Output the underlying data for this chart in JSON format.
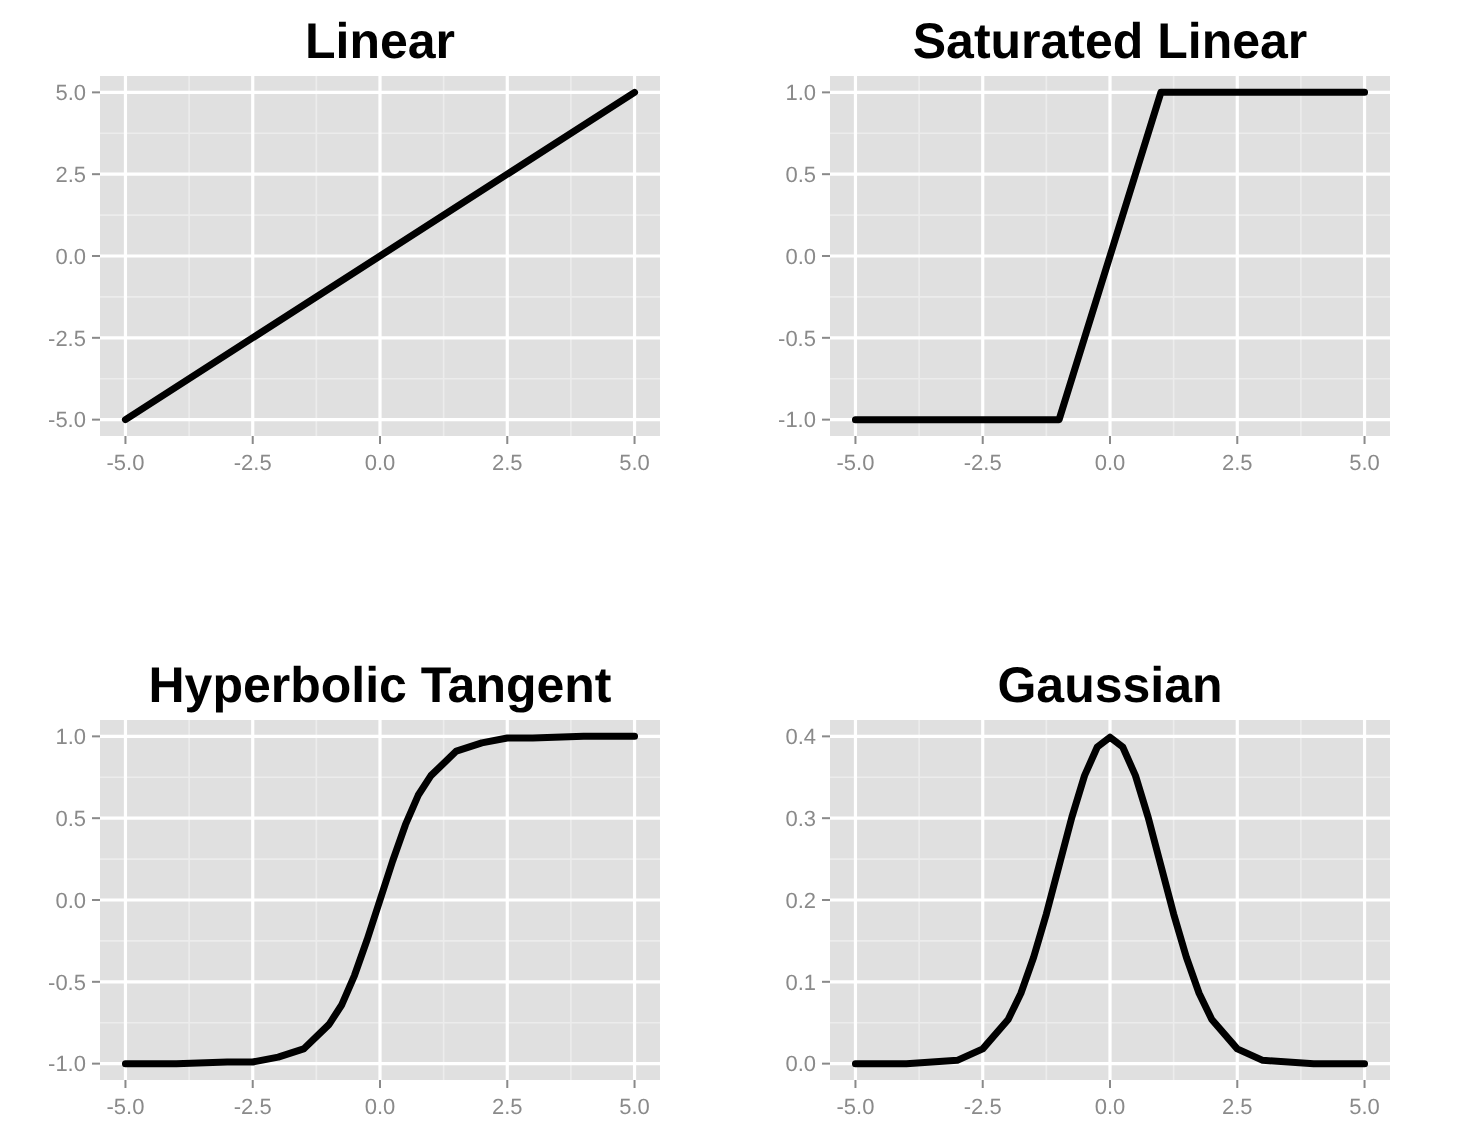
{
  "chart_data": [
    {
      "type": "line",
      "title": "Linear",
      "x": [
        -5,
        5
      ],
      "series": [
        {
          "color": "#000000",
          "values": [
            -5,
            5
          ]
        }
      ],
      "xlim": [
        -5.5,
        5.5
      ],
      "xticks": [
        {
          "value": -5,
          "label": "-5.0"
        },
        {
          "value": -2.5,
          "label": "-2.5"
        },
        {
          "value": 0,
          "label": "0.0"
        },
        {
          "value": 2.5,
          "label": "2.5"
        },
        {
          "value": 5,
          "label": "5.0"
        }
      ],
      "ylim": [
        -5.5,
        5.5
      ],
      "yticks": [
        {
          "value": -5,
          "label": "-5.0"
        },
        {
          "value": -2.5,
          "label": "-2.5"
        },
        {
          "value": 0,
          "label": "0.0"
        },
        {
          "value": 2.5,
          "label": "2.5"
        },
        {
          "value": 5,
          "label": "5.0"
        }
      ],
      "grid": true
    },
    {
      "type": "line",
      "title": "Saturated Linear",
      "x": [
        -5,
        -1,
        1,
        5
      ],
      "series": [
        {
          "color": "#000000",
          "values": [
            -1,
            -1,
            1,
            1
          ]
        }
      ],
      "xlim": [
        -5.5,
        5.5
      ],
      "xticks": [
        {
          "value": -5,
          "label": "-5.0"
        },
        {
          "value": -2.5,
          "label": "-2.5"
        },
        {
          "value": 0,
          "label": "0.0"
        },
        {
          "value": 2.5,
          "label": "2.5"
        },
        {
          "value": 5,
          "label": "5.0"
        }
      ],
      "ylim": [
        -1.1,
        1.1
      ],
      "yticks": [
        {
          "value": -1,
          "label": "-1.0"
        },
        {
          "value": -0.5,
          "label": "-0.5"
        },
        {
          "value": 0,
          "label": "0.0"
        },
        {
          "value": 0.5,
          "label": "0.5"
        },
        {
          "value": 1,
          "label": "1.0"
        }
      ],
      "grid": true
    },
    {
      "type": "line",
      "title": "Hyperbolic Tangent",
      "x": [
        -5,
        -4,
        -3,
        -2.5,
        -2,
        -1.5,
        -1,
        -0.75,
        -0.5,
        -0.25,
        0,
        0.25,
        0.5,
        0.75,
        1,
        1.5,
        2,
        2.5,
        3,
        4,
        5
      ],
      "series": [
        {
          "color": "#000000",
          "values": [
            -1,
            -1,
            -0.99,
            -0.99,
            -0.96,
            -0.91,
            -0.76,
            -0.64,
            -0.46,
            -0.24,
            0,
            0.24,
            0.46,
            0.64,
            0.76,
            0.91,
            0.96,
            0.99,
            0.99,
            1,
            1
          ]
        }
      ],
      "xlim": [
        -5.5,
        5.5
      ],
      "xticks": [
        {
          "value": -5,
          "label": "-5.0"
        },
        {
          "value": -2.5,
          "label": "-2.5"
        },
        {
          "value": 0,
          "label": "0.0"
        },
        {
          "value": 2.5,
          "label": "2.5"
        },
        {
          "value": 5,
          "label": "5.0"
        }
      ],
      "ylim": [
        -1.1,
        1.1
      ],
      "yticks": [
        {
          "value": -1,
          "label": "-1.0"
        },
        {
          "value": -0.5,
          "label": "-0.5"
        },
        {
          "value": 0,
          "label": "0.0"
        },
        {
          "value": 0.5,
          "label": "0.5"
        },
        {
          "value": 1,
          "label": "1.0"
        }
      ],
      "grid": true
    },
    {
      "type": "line",
      "title": "Gaussian",
      "x": [
        -5,
        -4,
        -3,
        -2.5,
        -2,
        -1.75,
        -1.5,
        -1.25,
        -1,
        -0.75,
        -0.5,
        -0.25,
        0,
        0.25,
        0.5,
        0.75,
        1,
        1.25,
        1.5,
        1.75,
        2,
        2.5,
        3,
        4,
        5
      ],
      "series": [
        {
          "color": "#000000",
          "values": [
            0,
            0,
            0.004,
            0.018,
            0.054,
            0.086,
            0.13,
            0.183,
            0.242,
            0.301,
            0.352,
            0.387,
            0.399,
            0.387,
            0.352,
            0.301,
            0.242,
            0.183,
            0.13,
            0.086,
            0.054,
            0.018,
            0.004,
            0,
            0
          ]
        }
      ],
      "xlim": [
        -5.5,
        5.5
      ],
      "xticks": [
        {
          "value": -5,
          "label": "-5.0"
        },
        {
          "value": -2.5,
          "label": "-2.5"
        },
        {
          "value": 0,
          "label": "0.0"
        },
        {
          "value": 2.5,
          "label": "2.5"
        },
        {
          "value": 5,
          "label": "5.0"
        }
      ],
      "ylim": [
        -0.02,
        0.42
      ],
      "yticks": [
        {
          "value": 0,
          "label": "0.0"
        },
        {
          "value": 0.1,
          "label": "0.1"
        },
        {
          "value": 0.2,
          "label": "0.2"
        },
        {
          "value": 0.3,
          "label": "0.3"
        },
        {
          "value": 0.4,
          "label": "0.4"
        }
      ],
      "grid": true
    }
  ]
}
